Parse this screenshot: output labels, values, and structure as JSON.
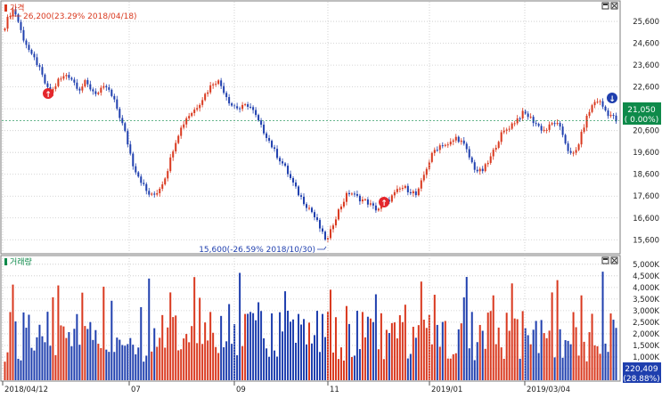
{
  "price_panel": {
    "legend_label": "가격",
    "high_annotation": "26,200(23.29% 2018/04/18)",
    "low_annotation": "15,600(-26.59% 2018/10/30)",
    "current_price_label": "21,050",
    "current_change_label": "( 0.00%)"
  },
  "volume_panel": {
    "legend_label": "거래량",
    "current_volume_label": "220,409",
    "current_volume_pct": "(28.88%)"
  },
  "colors": {
    "up": "#d9381e",
    "down": "#1f3fae",
    "badge_green": "#0e8a4a",
    "badge_blue": "#1f3fae",
    "grid": "#c8c8c8",
    "border": "#7d7d7d"
  },
  "chart_data": [
    {
      "type": "candlestick",
      "title": "가격",
      "ylim": [
        15000,
        26500
      ],
      "yticks": [
        "25,600",
        "24,600",
        "23,600",
        "22,600",
        "21,600",
        "20,600",
        "19,600",
        "18,600",
        "17,600",
        "16,600",
        "15,600"
      ],
      "ytick_values": [
        25600,
        24600,
        23600,
        22600,
        21600,
        20600,
        19600,
        18600,
        17600,
        16600,
        15600
      ],
      "xticks": [
        "2018/04/12",
        "07",
        "09",
        "11",
        "2019/01",
        "2019/03/04"
      ],
      "series_close": [
        25400,
        25900,
        26200,
        25600,
        24900,
        24500,
        24000,
        23800,
        23300,
        22800,
        22300,
        22500,
        22900,
        23000,
        23200,
        23000,
        22700,
        22500,
        22800,
        22600,
        22400,
        22300,
        22500,
        22600,
        22200,
        21800,
        21200,
        20600,
        19800,
        19000,
        18600,
        18200,
        17800,
        17600,
        17700,
        18000,
        18400,
        19000,
        19800,
        20400,
        20800,
        21200,
        21400,
        21600,
        21900,
        22200,
        22500,
        22800,
        22900,
        22600,
        22200,
        21800,
        21700,
        21600,
        21700,
        21800,
        21500,
        21100,
        20700,
        20400,
        20000,
        19600,
        19300,
        19000,
        18600,
        18200,
        17800,
        17500,
        17200,
        17000,
        16600,
        16200,
        15700,
        15600,
        16300,
        16800,
        17200,
        17600,
        17800,
        17600,
        17500,
        17400,
        17300,
        17100,
        17000,
        17100,
        17300,
        17500,
        17700,
        17900,
        18000,
        17900,
        17800,
        17600,
        18200,
        18800,
        19300,
        19700,
        19900,
        20000,
        19900,
        20100,
        20300,
        20100,
        19800,
        19300,
        18900,
        18700,
        18800,
        19100,
        19500,
        20000,
        20400,
        20600,
        20800,
        21000,
        21200,
        21400,
        21300,
        21100,
        20900,
        20700,
        20600,
        20800,
        21000,
        20800,
        20400,
        19800,
        19400,
        19700,
        20300,
        21000,
        21500,
        21900,
        22000,
        21700,
        21400,
        21300,
        21050
      ],
      "current_value": 21050,
      "annotations": [
        {
          "label": "26,200(23.29% 2018/04/18)",
          "value": 26200
        },
        {
          "label": "15,600(-26.59% 2018/10/30)",
          "value": 15600
        }
      ]
    },
    {
      "type": "bar",
      "title": "거래량",
      "ylim": [
        0,
        5300000
      ],
      "yticks": [
        "5,000K",
        "4,500K",
        "4,000K",
        "3,500K",
        "3,000K",
        "2,500K",
        "2,000K",
        "1,500K",
        "1,000K",
        "500K"
      ],
      "ytick_values": [
        5000000,
        4500000,
        4000000,
        3500000,
        3000000,
        2500000,
        2000000,
        1500000,
        1000000,
        500000
      ],
      "current_value": 220409
    }
  ]
}
